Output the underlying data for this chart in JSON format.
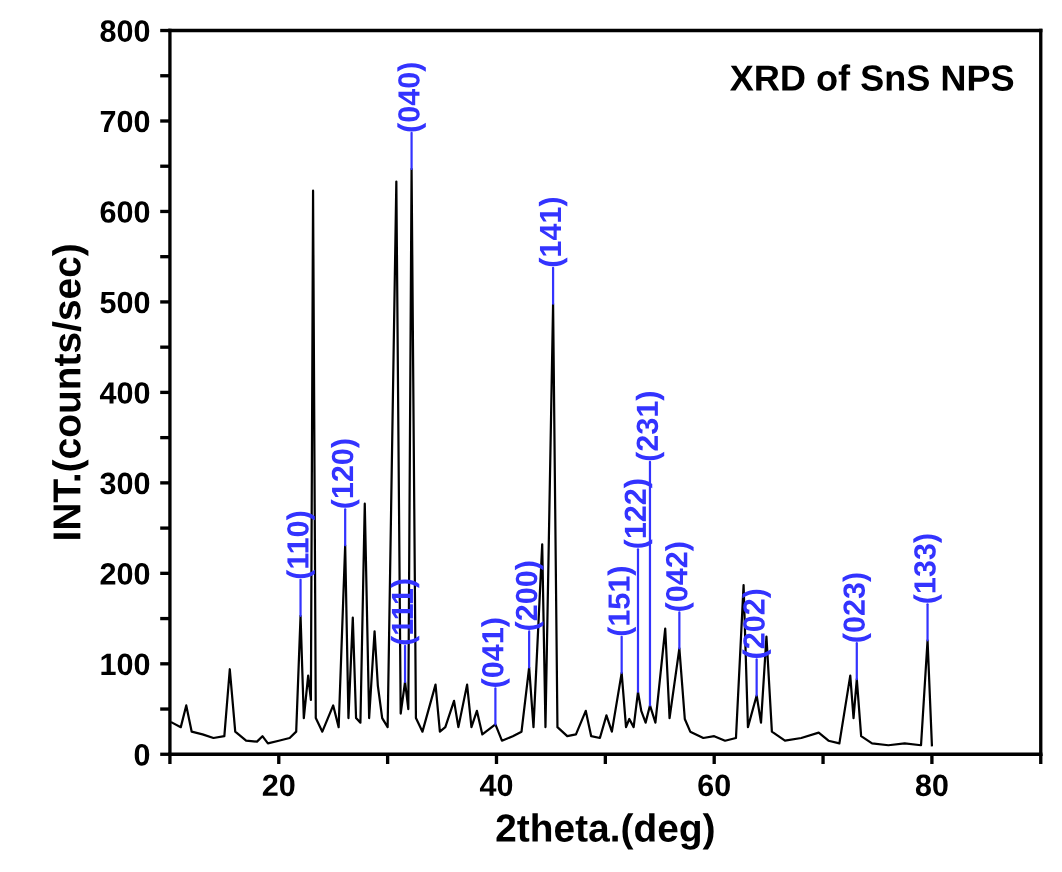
{
  "chart_data": {
    "type": "line",
    "title": "XRD of SnS NPS",
    "xlabel": "2theta.(deg)",
    "ylabel": "INT.(counts/sec)",
    "xlim": [
      10,
      90
    ],
    "ylim": [
      0,
      800
    ],
    "xticks": [
      {
        "value": 10,
        "label": null
      },
      20,
      {
        "value": 30,
        "label": null
      },
      40,
      {
        "value": 50,
        "label": null
      },
      60,
      {
        "value": 70,
        "label": null
      },
      80,
      {
        "value": 90,
        "label": null
      }
    ],
    "yticks": [
      0,
      {
        "value": 50,
        "label": null
      },
      100,
      {
        "value": 150,
        "label": null
      },
      200,
      {
        "value": 250,
        "label": null
      },
      300,
      {
        "value": 350,
        "label": null
      },
      400,
      {
        "value": 450,
        "label": null
      },
      500,
      {
        "value": 550,
        "label": null
      },
      600,
      {
        "value": 650,
        "label": null
      },
      700,
      {
        "value": 750,
        "label": null
      },
      800
    ],
    "grid": false,
    "legend": false,
    "marker": "none",
    "line_style": "solid",
    "series": [
      {
        "color": "#000000",
        "x": [
          10.2,
          11.0,
          11.5,
          12.0,
          13,
          14,
          15,
          15.5,
          16,
          17,
          18,
          18.5,
          19,
          20,
          21,
          21.6,
          22.0,
          22.3,
          22.7,
          22.95,
          23.15,
          23.4,
          24,
          25.0,
          25.5,
          26.1,
          26.4,
          26.8,
          27.1,
          27.5,
          27.9,
          28.3,
          28.8,
          29.1,
          29.5,
          30.0,
          30.8,
          31.2,
          31.6,
          31.9,
          32.2,
          32.6,
          33.2,
          34.4,
          34.8,
          35.3,
          36.1,
          36.5,
          37.3,
          37.7,
          38.2,
          38.7,
          39.9,
          40.5,
          41.5,
          42.3,
          43.0,
          43.4,
          44.2,
          44.5,
          45.2,
          45.6,
          46.5,
          47.3,
          48.2,
          48.7,
          49.5,
          50.1,
          50.6,
          51.5,
          51.9,
          52.2,
          52.6,
          53.0,
          53.3,
          53.7,
          54.1,
          54.6,
          55.5,
          55.9,
          56.8,
          57.3,
          57.8,
          59,
          60,
          61,
          62,
          62.7,
          63.1,
          63.9,
          64.3,
          64.8,
          65.3,
          66.5,
          68,
          69.6,
          70.5,
          71.5,
          72.5,
          72.8,
          73.1,
          73.5,
          74.5,
          76,
          77.5,
          79,
          79.6,
          80
        ],
        "values": [
          35,
          30,
          54,
          25,
          22,
          18,
          20,
          94,
          25,
          15,
          14,
          20,
          12,
          15,
          18,
          25,
          153,
          40,
          87,
          60,
          623,
          40,
          25,
          54,
          30,
          231,
          40,
          151,
          40,
          35,
          277,
          40,
          136,
          76,
          40,
          30,
          633,
          45,
          80,
          50,
          647,
          40,
          25,
          77,
          25,
          30,
          59,
          30,
          77,
          30,
          48,
          22,
          33,
          15,
          20,
          25,
          96,
          30,
          232,
          30,
          498,
          30,
          20,
          22,
          48,
          20,
          18,
          43,
          25,
          90,
          30,
          39,
          30,
          69,
          48,
          35,
          54,
          35,
          139,
          40,
          117,
          39,
          25,
          18,
          20,
          15,
          18,
          187,
          30,
          65,
          35,
          130,
          25,
          15,
          18,
          24,
          15,
          12,
          87,
          40,
          83,
          20,
          12,
          10,
          12,
          10,
          126,
          10
        ]
      }
    ],
    "annotations": [
      {
        "text": "(110)",
        "x": 22.0,
        "y": 153
      },
      {
        "text": "(120)",
        "x": 26.1,
        "y": 231
      },
      {
        "text": "(111)",
        "x": 31.6,
        "y": 80
      },
      {
        "text": "(040)",
        "x": 32.2,
        "y": 647
      },
      {
        "text": "(041)",
        "x": 39.9,
        "y": 33
      },
      {
        "text": "(200)",
        "x": 43.0,
        "y": 96
      },
      {
        "text": "(141)",
        "x": 45.2,
        "y": 498
      },
      {
        "text": "(151)",
        "x": 51.5,
        "y": 90
      },
      {
        "text": "(122)",
        "x": 53.0,
        "y": 69
      },
      {
        "text": "(231)",
        "x": 54.1,
        "y": 54
      },
      {
        "text": "(042)",
        "x": 56.8,
        "y": 117
      },
      {
        "text": "(202)",
        "x": 63.9,
        "y": 65
      },
      {
        "text": "(023)",
        "x": 73.1,
        "y": 83
      },
      {
        "text": "(133)",
        "x": 79.6,
        "y": 126
      }
    ]
  }
}
